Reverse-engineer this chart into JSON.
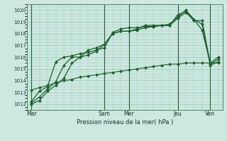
{
  "xlabel": "Pression niveau de la mer( hPa )",
  "background_color": "#cce8e0",
  "grid_color": "#88bba8",
  "line_color": "#1a5e2a",
  "ylim": [
    1011.5,
    1020.5
  ],
  "yticks": [
    1012,
    1013,
    1014,
    1015,
    1016,
    1017,
    1018,
    1019,
    1020
  ],
  "xtick_labels": [
    "Mar",
    "Sam",
    "Mer",
    "Jeu",
    "Ven"
  ],
  "xtick_positions": [
    0,
    9,
    12,
    18,
    22
  ],
  "total_steps": 24,
  "vlines": [
    0,
    9,
    12,
    18,
    22
  ],
  "lines": [
    {
      "x": [
        0,
        1,
        2,
        3,
        4,
        5,
        6,
        7,
        8,
        9,
        10,
        11,
        12,
        13,
        14,
        15,
        16,
        17,
        18,
        19,
        20,
        21,
        22,
        23
      ],
      "y": [
        1012.0,
        1012.3,
        1013.1,
        1013.6,
        1014.2,
        1015.5,
        1016.0,
        1016.6,
        1016.8,
        1017.1,
        1018.0,
        1018.2,
        1018.2,
        1018.3,
        1018.5,
        1018.6,
        1018.7,
        1018.7,
        1019.3,
        1019.8,
        1019.1,
        1019.1,
        1015.4,
        1015.8
      ],
      "marker": "D",
      "markersize": 2.0,
      "linewidth": 0.9
    },
    {
      "x": [
        0,
        1,
        2,
        3,
        4,
        5,
        6,
        7,
        8,
        9,
        10,
        11,
        12,
        13,
        14,
        15,
        16,
        17,
        18,
        19,
        20,
        21,
        22,
        23
      ],
      "y": [
        1012.1,
        1012.6,
        1013.3,
        1013.9,
        1015.3,
        1016.0,
        1016.0,
        1016.2,
        1016.5,
        1017.1,
        1018.0,
        1018.2,
        1018.2,
        1018.4,
        1018.7,
        1018.7,
        1018.7,
        1018.8,
        1019.4,
        1020.0,
        1019.2,
        1018.8,
        1015.3,
        1015.6
      ],
      "marker": "D",
      "markersize": 2.0,
      "linewidth": 0.9
    },
    {
      "x": [
        0,
        1,
        2,
        3,
        4,
        5,
        6,
        7,
        8,
        9,
        10,
        11,
        12,
        13,
        14,
        15,
        16,
        17,
        18,
        19,
        20,
        21,
        22,
        23
      ],
      "y": [
        1012.2,
        1013.1,
        1013.5,
        1015.6,
        1016.0,
        1016.1,
        1016.3,
        1016.4,
        1016.6,
        1016.8,
        1018.1,
        1018.4,
        1018.5,
        1018.5,
        1018.6,
        1018.6,
        1018.7,
        1018.7,
        1019.6,
        1019.9,
        1019.2,
        1018.3,
        1015.5,
        1016.0
      ],
      "marker": "D",
      "markersize": 2.0,
      "linewidth": 0.9
    },
    {
      "x": [
        0,
        1,
        2,
        3,
        4,
        5,
        6,
        7,
        8,
        9,
        10,
        11,
        12,
        13,
        14,
        15,
        16,
        17,
        18,
        19,
        20,
        21,
        22,
        23
      ],
      "y": [
        1013.2,
        1013.4,
        1013.6,
        1013.8,
        1014.0,
        1014.1,
        1014.3,
        1014.4,
        1014.5,
        1014.6,
        1014.7,
        1014.8,
        1014.9,
        1015.0,
        1015.1,
        1015.2,
        1015.3,
        1015.4,
        1015.4,
        1015.5,
        1015.5,
        1015.5,
        1015.5,
        1015.5
      ],
      "marker": "D",
      "markersize": 2.0,
      "linewidth": 0.8
    }
  ]
}
